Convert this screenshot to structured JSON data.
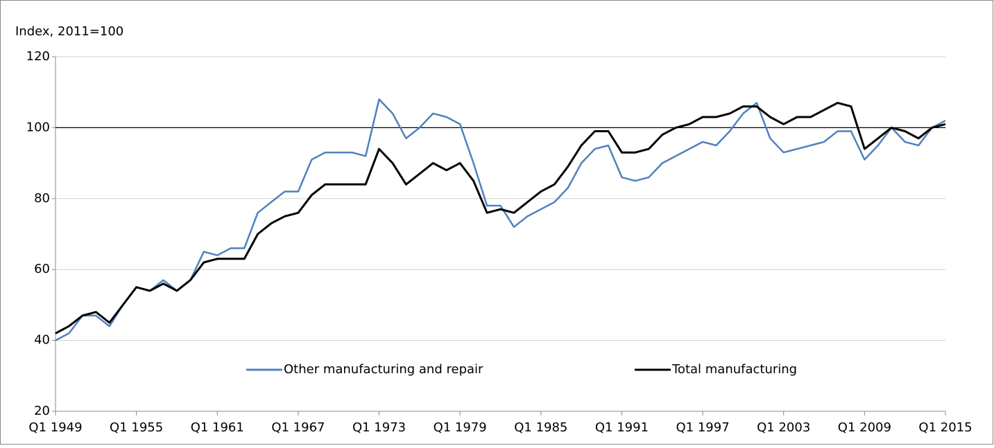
{
  "chart_data": {
    "type": "line",
    "ylabel": "Index, 2011=100",
    "categories": [
      "Q1 1949",
      null,
      null,
      null,
      null,
      null,
      "Q1 1955",
      null,
      null,
      null,
      null,
      null,
      "Q1 1961",
      null,
      null,
      null,
      null,
      null,
      "Q1 1967",
      null,
      null,
      null,
      null,
      null,
      "Q1 1973",
      null,
      null,
      null,
      null,
      null,
      "Q1 1979",
      null,
      null,
      null,
      null,
      null,
      "Q1 1985",
      null,
      null,
      null,
      null,
      null,
      "Q1 1991",
      null,
      null,
      null,
      null,
      null,
      "Q1 1997",
      null,
      null,
      null,
      null,
      null,
      "Q1 2003",
      null,
      null,
      null,
      null,
      null,
      "Q1 2009",
      null,
      null,
      null,
      null,
      null,
      "Q1 2015"
    ],
    "series": [
      {
        "name": "Other manufacturing and repair",
        "color": "#4f81bd",
        "values": [
          40,
          42,
          47,
          47,
          44,
          50,
          55,
          54,
          57,
          54,
          57,
          65,
          64,
          66,
          66,
          76,
          79,
          82,
          82,
          91,
          93,
          93,
          93,
          92,
          108,
          104,
          97,
          100,
          104,
          103,
          101,
          90,
          78,
          78,
          72,
          75,
          77,
          79,
          83,
          90,
          94,
          95,
          86,
          85,
          86,
          90,
          92,
          94,
          96,
          95,
          99,
          104,
          107,
          97,
          93,
          94,
          95,
          96,
          99,
          99,
          91,
          95,
          100,
          96,
          95,
          100,
          102
        ]
      },
      {
        "name": "Total manufacturing",
        "color": "#000000",
        "values": [
          42,
          44,
          47,
          48,
          45,
          50,
          55,
          54,
          56,
          54,
          57,
          62,
          63,
          63,
          63,
          70,
          73,
          75,
          76,
          81,
          84,
          84,
          84,
          84,
          94,
          90,
          84,
          87,
          90,
          88,
          90,
          85,
          76,
          77,
          76,
          79,
          82,
          84,
          89,
          95,
          99,
          99,
          93,
          93,
          94,
          98,
          100,
          101,
          103,
          103,
          104,
          106,
          106,
          103,
          101,
          103,
          103,
          105,
          107,
          106,
          94,
          97,
          100,
          99,
          97,
          100,
          101
        ]
      }
    ],
    "hline": 100,
    "ylim": [
      20,
      120
    ],
    "yticks": [
      20,
      40,
      60,
      80,
      100,
      120
    ],
    "grid": true,
    "legend": "bottom"
  }
}
